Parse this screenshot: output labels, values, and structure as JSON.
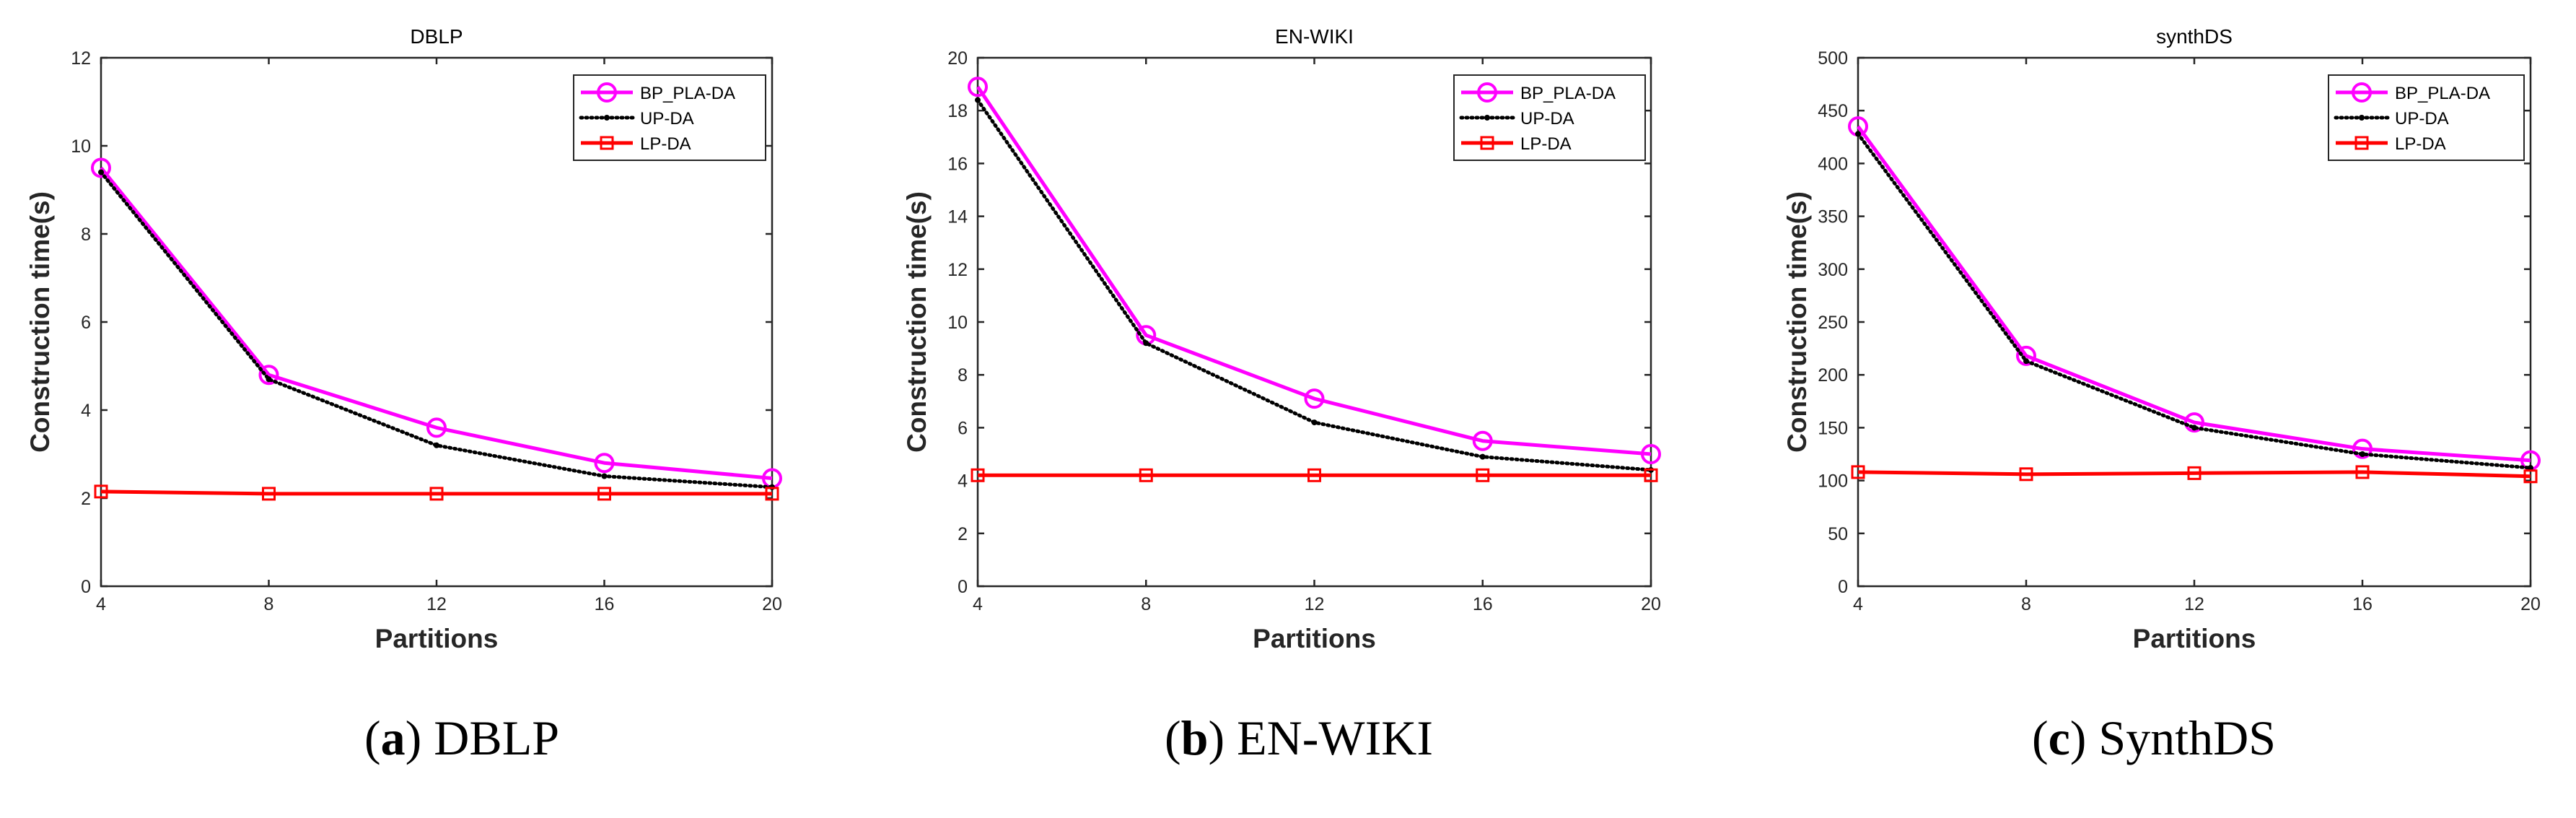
{
  "colors": {
    "BP_PLA-DA": "#ff00ff",
    "UP-DA": "#000000",
    "LP-DA": "#ff0000",
    "axis": "#262626"
  },
  "chart_data": [
    {
      "type": "line",
      "title": "DBLP",
      "xlabel": "Partitions",
      "ylabel": "Construction time(s)",
      "x": [
        4,
        8,
        12,
        16,
        20
      ],
      "xlim": [
        4,
        20
      ],
      "ylim": [
        0,
        12
      ],
      "yticks": [
        0,
        2,
        4,
        6,
        8,
        10,
        12
      ],
      "legend_position": "top-right",
      "grid": false,
      "caption": {
        "open": "(",
        "letter": "a",
        "rest": ") DBLP"
      },
      "series": [
        {
          "name": "BP_PLA-DA",
          "marker": "circle",
          "style": "solid",
          "values": [
            9.5,
            4.8,
            3.6,
            2.8,
            2.45
          ]
        },
        {
          "name": "UP-DA",
          "marker": "dot",
          "style": "dotted",
          "values": [
            9.4,
            4.7,
            3.2,
            2.5,
            2.25
          ]
        },
        {
          "name": "LP-DA",
          "marker": "square",
          "style": "solid",
          "values": [
            2.15,
            2.1,
            2.1,
            2.1,
            2.1
          ]
        }
      ]
    },
    {
      "type": "line",
      "title": "EN-WIKI",
      "xlabel": "Partitions",
      "ylabel": "Construction time(s)",
      "x": [
        4,
        8,
        12,
        16,
        20
      ],
      "xlim": [
        4,
        20
      ],
      "ylim": [
        0,
        20
      ],
      "yticks": [
        0,
        2,
        4,
        6,
        8,
        10,
        12,
        14,
        16,
        18,
        20
      ],
      "legend_position": "top-right",
      "grid": false,
      "caption": {
        "open": "(",
        "letter": "b",
        "rest": ") EN-WIKI"
      },
      "series": [
        {
          "name": "BP_PLA-DA",
          "marker": "circle",
          "style": "solid",
          "values": [
            18.9,
            9.5,
            7.1,
            5.5,
            5.0
          ]
        },
        {
          "name": "UP-DA",
          "marker": "dot",
          "style": "dotted",
          "values": [
            18.4,
            9.2,
            6.2,
            4.9,
            4.4
          ]
        },
        {
          "name": "LP-DA",
          "marker": "square",
          "style": "solid",
          "values": [
            4.2,
            4.2,
            4.2,
            4.2,
            4.2
          ]
        }
      ]
    },
    {
      "type": "line",
      "title": "synthDS",
      "xlabel": "Partitions",
      "ylabel": "Construction time(s)",
      "x": [
        4,
        8,
        12,
        16,
        20
      ],
      "xlim": [
        4,
        20
      ],
      "ylim": [
        0,
        500
      ],
      "yticks": [
        0,
        50,
        100,
        150,
        200,
        250,
        300,
        350,
        400,
        450,
        500
      ],
      "legend_position": "top-right",
      "grid": false,
      "caption": {
        "open": "(",
        "letter": "c",
        "rest": ") SynthDS"
      },
      "series": [
        {
          "name": "BP_PLA-DA",
          "marker": "circle",
          "style": "solid",
          "values": [
            435,
            218,
            155,
            130,
            119
          ]
        },
        {
          "name": "UP-DA",
          "marker": "dot",
          "style": "dotted",
          "values": [
            428,
            213,
            150,
            125,
            112
          ]
        },
        {
          "name": "LP-DA",
          "marker": "square",
          "style": "solid",
          "values": [
            108,
            106,
            107,
            108,
            104
          ]
        }
      ]
    }
  ]
}
